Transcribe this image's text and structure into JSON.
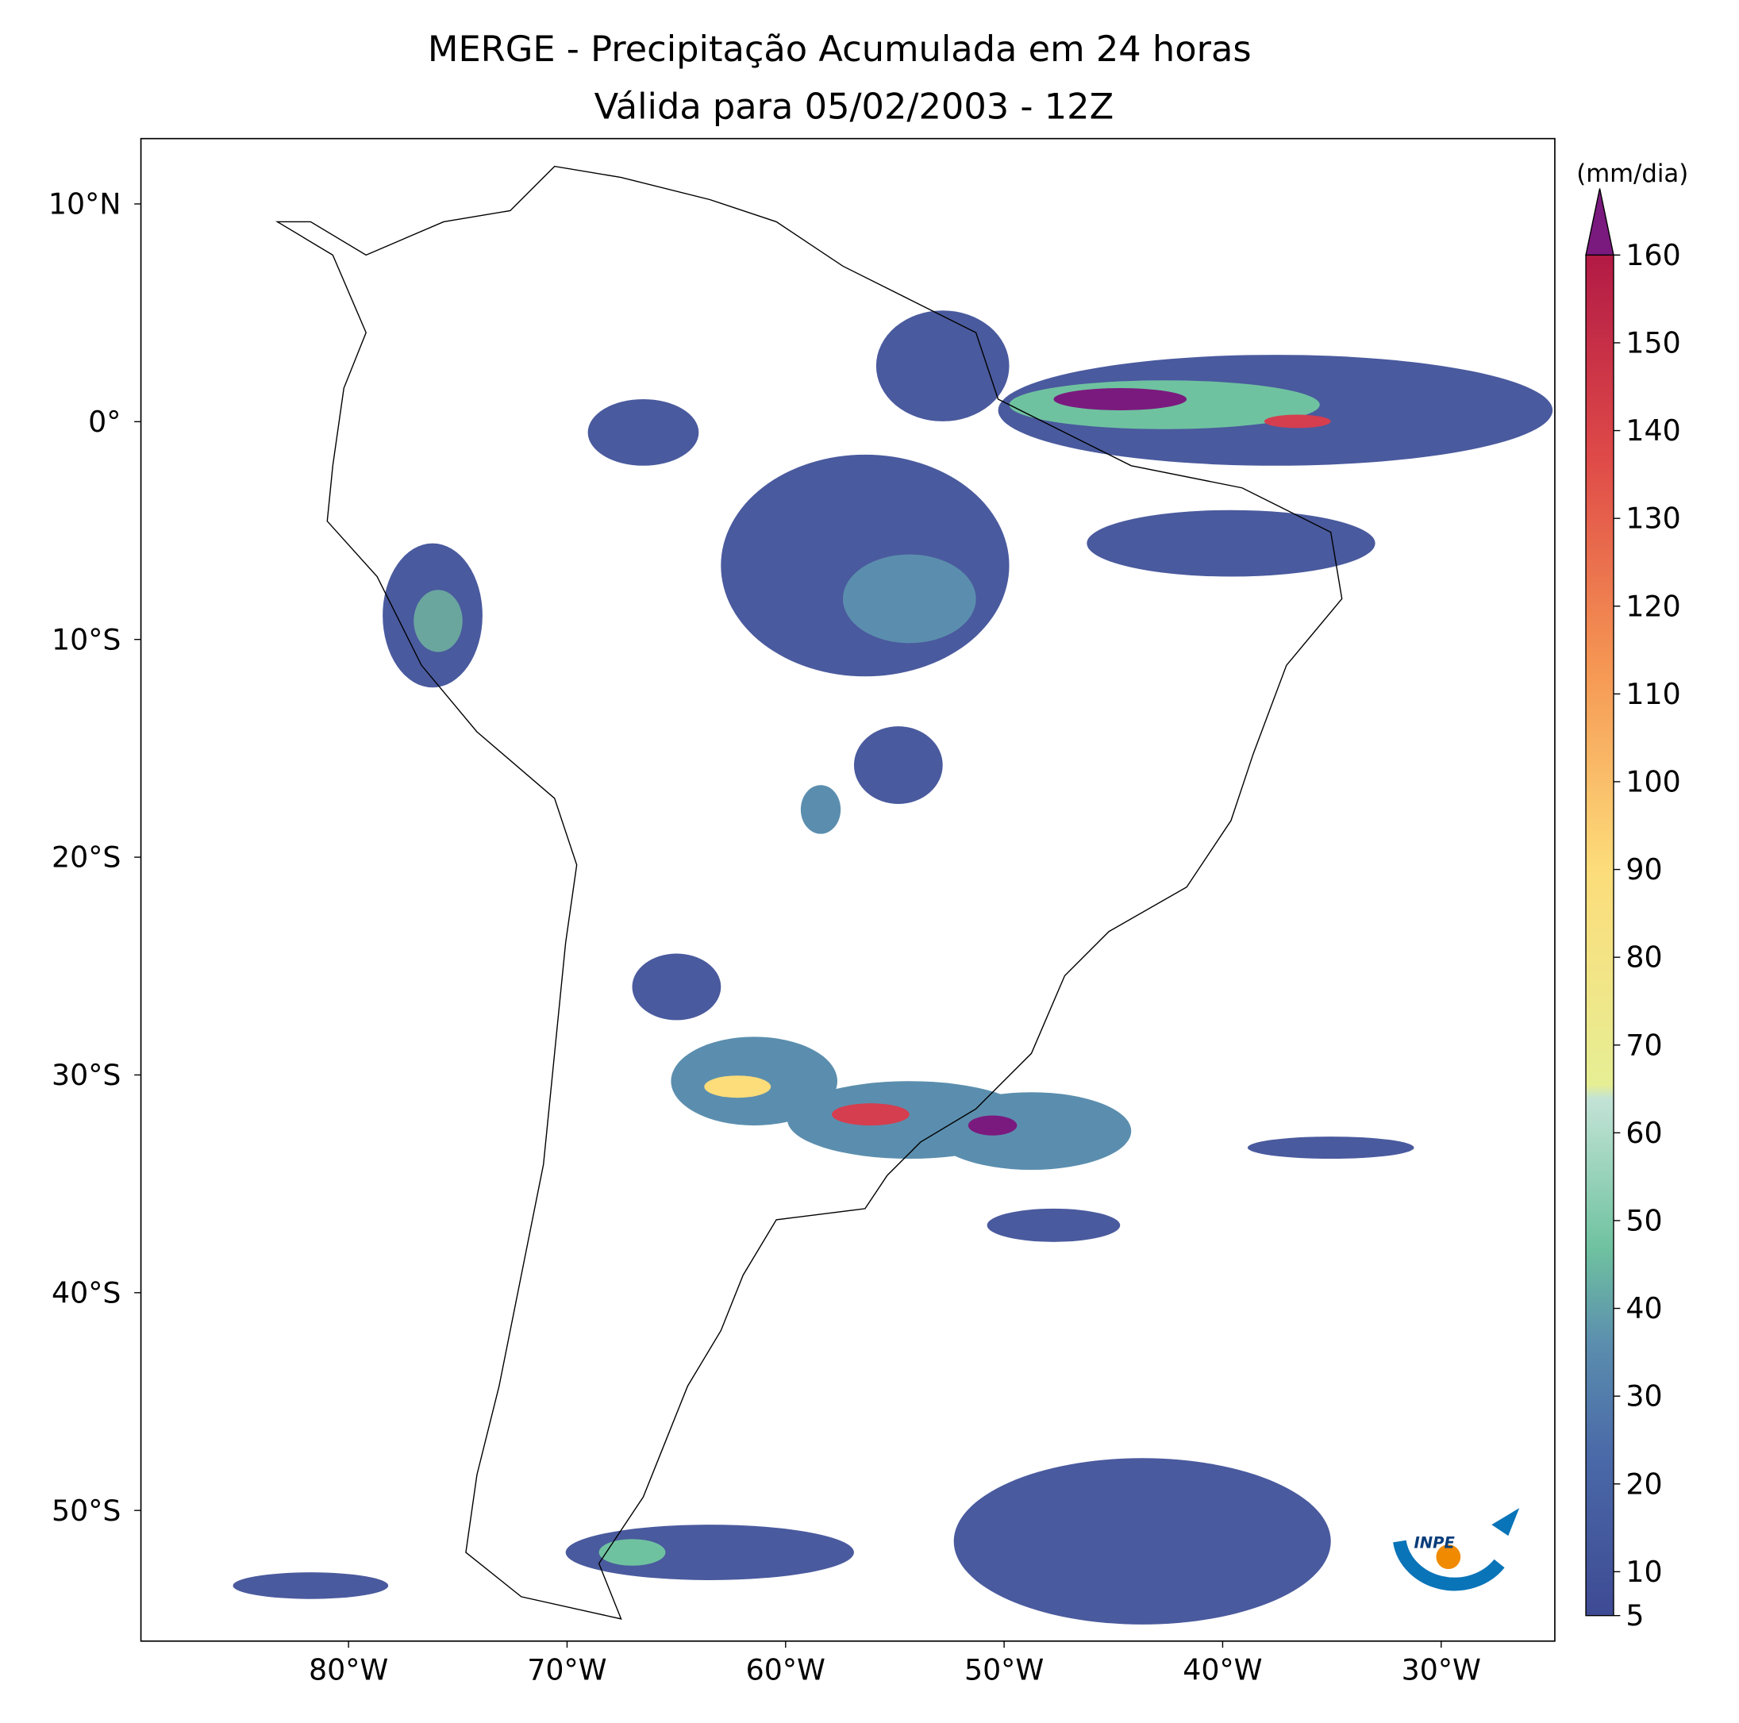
{
  "map": {
    "title": "MERGE - Precipitação Acumulada em 24 horas",
    "subtitle": "Válida para 05/02/2003 - 12Z",
    "xlim": [
      -89.5,
      -24.8
    ],
    "ylim": [
      -56,
      13
    ],
    "xticks": [
      {
        "value": -80,
        "label": "80°W"
      },
      {
        "value": -70,
        "label": "70°W"
      },
      {
        "value": -60,
        "label": "60°W"
      },
      {
        "value": -50,
        "label": "50°W"
      },
      {
        "value": -40,
        "label": "40°W"
      },
      {
        "value": -30,
        "label": "30°W"
      }
    ],
    "yticks": [
      {
        "value": 10,
        "label": "10°N"
      },
      {
        "value": 0,
        "label": "0°"
      },
      {
        "value": -10,
        "label": "10°S"
      },
      {
        "value": -20,
        "label": "20°S"
      },
      {
        "value": -30,
        "label": "30°S"
      },
      {
        "value": -40,
        "label": "40°S"
      },
      {
        "value": -50,
        "label": "50°S"
      }
    ],
    "colorbar": {
      "label": "(mm/dia)",
      "lim": [
        5,
        160
      ],
      "ticks": [
        5,
        10,
        20,
        30,
        40,
        50,
        60,
        70,
        80,
        90,
        100,
        110,
        120,
        130,
        140,
        150,
        160
      ]
    },
    "logo": "INPE"
  }
}
